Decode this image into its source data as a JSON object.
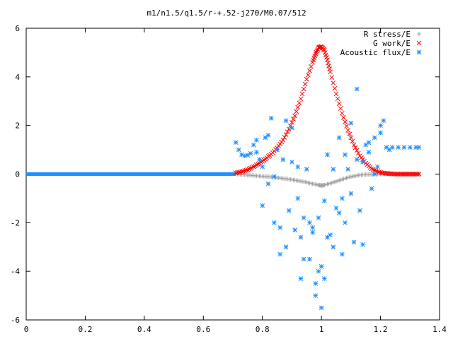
{
  "chart_data": {
    "type": "scatter",
    "title": "m1/n1.5/q1.5/r-+.52-j270/M0.07/512",
    "xlabel": "",
    "ylabel": "",
    "xlim": [
      0,
      1.4
    ],
    "ylim": [
      -6,
      6
    ],
    "x_ticks": [
      0,
      0.2,
      0.4,
      0.6,
      0.8,
      1,
      1.2,
      1.4
    ],
    "x_tick_labels": [
      "0",
      "0.2",
      "0.4",
      "0.6",
      "0.8",
      "1",
      "1.2",
      "1.4"
    ],
    "y_ticks": [
      -6,
      -4,
      -2,
      0,
      2,
      4,
      6
    ],
    "y_tick_labels": [
      "-6",
      "-4",
      "-2",
      "0",
      "2",
      "4",
      "6"
    ],
    "grid": false,
    "legend_position": "top-right",
    "series": [
      {
        "name": "R stress/E",
        "marker": "plus",
        "color": "#a0a0a0",
        "x": [
          0.71,
          0.73,
          0.75,
          0.77,
          0.79,
          0.81,
          0.83,
          0.85,
          0.87,
          0.89,
          0.91,
          0.93,
          0.95,
          0.97,
          0.99,
          1.0,
          1.01,
          1.03,
          1.05,
          1.07,
          1.09,
          1.11,
          1.13,
          1.15,
          1.17,
          1.19,
          1.21,
          1.23,
          1.25,
          1.27,
          1.29,
          1.31,
          1.33
        ],
        "y": [
          0.0,
          -0.02,
          -0.04,
          -0.06,
          -0.08,
          -0.1,
          -0.12,
          -0.15,
          -0.18,
          -0.21,
          -0.25,
          -0.29,
          -0.34,
          -0.4,
          -0.45,
          -0.47,
          -0.45,
          -0.38,
          -0.3,
          -0.22,
          -0.14,
          -0.08,
          -0.04,
          -0.02,
          -0.01,
          0.0,
          0.0,
          0.0,
          0.0,
          0.0,
          0.0,
          0.0,
          0.0
        ]
      },
      {
        "name": "G work/E",
        "marker": "cross",
        "color": "#ff0000",
        "x": [
          0.71,
          0.73,
          0.75,
          0.77,
          0.79,
          0.81,
          0.83,
          0.85,
          0.87,
          0.89,
          0.91,
          0.93,
          0.95,
          0.97,
          0.98,
          0.99,
          1.0,
          1.01,
          1.02,
          1.03,
          1.05,
          1.07,
          1.09,
          1.11,
          1.13,
          1.15,
          1.17,
          1.19,
          1.21,
          1.23,
          1.25,
          1.27,
          1.29,
          1.31,
          1.33
        ],
        "y": [
          0.05,
          0.1,
          0.18,
          0.3,
          0.45,
          0.62,
          0.82,
          1.08,
          1.4,
          1.85,
          2.4,
          3.1,
          3.9,
          4.6,
          4.95,
          5.2,
          5.25,
          5.1,
          4.7,
          4.2,
          3.3,
          2.5,
          1.8,
          1.2,
          0.75,
          0.45,
          0.22,
          0.1,
          0.04,
          0.02,
          0.0,
          0.0,
          0.0,
          0.0,
          0.0
        ]
      },
      {
        "name": "Acoustic flux/E",
        "marker": "star",
        "color": "#1e90ff",
        "x": [
          0.71,
          0.72,
          0.73,
          0.74,
          0.75,
          0.76,
          0.77,
          0.78,
          0.79,
          0.8,
          0.81,
          0.82,
          0.83,
          0.84,
          0.85,
          0.86,
          0.87,
          0.88,
          0.89,
          0.9,
          0.91,
          0.92,
          0.93,
          0.94,
          0.95,
          0.96,
          0.97,
          0.98,
          0.99,
          1.0,
          1.01,
          1.02,
          1.03,
          1.04,
          1.05,
          1.06,
          1.07,
          1.08,
          1.09,
          1.1,
          1.11,
          1.12,
          1.13,
          1.14,
          1.15,
          1.16,
          1.17,
          1.18,
          1.19,
          1.2,
          1.21,
          1.22,
          1.23,
          1.24,
          1.26,
          1.28,
          1.3,
          1.32,
          1.33,
          0.78,
          0.8,
          0.82,
          0.84,
          0.86,
          0.88,
          0.9,
          0.92,
          0.94,
          0.96,
          0.98,
          1.0,
          1.02,
          1.04,
          1.06,
          1.08,
          1.1,
          1.12,
          1.14,
          1.16,
          1.18,
          1.2,
          0.97,
          0.99,
          1.01,
          0.93,
          1.07
        ],
        "y": [
          1.3,
          1.0,
          0.8,
          0.75,
          0.78,
          0.85,
          1.2,
          0.9,
          0.6,
          -1.3,
          1.5,
          -0.4,
          2.3,
          -2.0,
          1.0,
          -3.3,
          0.6,
          2.2,
          -1.5,
          1.9,
          -2.3,
          0.3,
          -4.3,
          -1.8,
          0.2,
          -3.5,
          -2.4,
          -5.0,
          -4.0,
          -5.5,
          -4.3,
          0.8,
          -2.5,
          -3.0,
          -1.4,
          1.5,
          -3.3,
          0.8,
          0.2,
          2.1,
          -2.8,
          3.5,
          -1.5,
          0.5,
          1.2,
          0.9,
          -0.6,
          1.5,
          0.3,
          1.7,
          2.2,
          1.1,
          1.0,
          1.1,
          1.1,
          1.1,
          1.1,
          1.1,
          1.1,
          1.4,
          0.3,
          1.6,
          -0.1,
          -2.2,
          -3.0,
          0.5,
          -1.0,
          -3.5,
          -2.0,
          -4.5,
          -3.8,
          -2.6,
          0.2,
          -1.6,
          -2.0,
          -0.8,
          0.6,
          -2.9,
          1.3,
          0.0,
          2.0,
          -2.2,
          -1.8,
          -1.1,
          -2.6,
          -1.0
        ]
      }
    ]
  }
}
